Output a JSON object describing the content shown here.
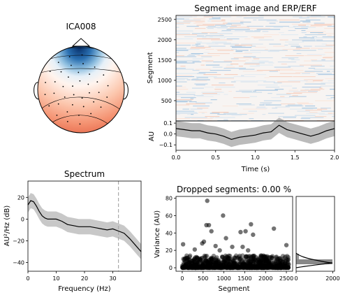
{
  "chart_data": [
    {
      "type": "topomap",
      "title": "ICA008",
      "contours": 5,
      "sensor_dots": 40
    },
    {
      "type": "heatmap",
      "title": "Segment image and ERP/ERF",
      "ylabel": "Segment",
      "xlim": [
        0,
        2.0
      ],
      "ylim": [
        0,
        2600
      ],
      "y_ticks": [
        500,
        1000,
        1500,
        2000,
        2500
      ]
    },
    {
      "type": "line",
      "title": "",
      "xlabel": "Time (s)",
      "ylabel": "AU",
      "xlim": [
        0,
        2.0
      ],
      "ylim": [
        -0.15,
        0.12
      ],
      "x_ticks": [
        "0.0",
        "0.5",
        "1.0",
        "1.5",
        "2.0"
      ],
      "y_ticks": [
        "0.1",
        "0.0",
        "−0.1"
      ],
      "x": [
        0.0,
        0.1,
        0.2,
        0.3,
        0.4,
        0.5,
        0.6,
        0.7,
        0.8,
        0.9,
        1.0,
        1.1,
        1.2,
        1.3,
        1.4,
        1.5,
        1.6,
        1.7,
        1.8,
        1.9,
        2.0
      ],
      "values": [
        0.05,
        0.04,
        0.03,
        0.03,
        0.01,
        0.0,
        -0.02,
        -0.05,
        -0.03,
        -0.02,
        -0.01,
        0.01,
        0.02,
        0.08,
        0.04,
        0.02,
        0.0,
        -0.02,
        0.0,
        0.03,
        0.05
      ],
      "band_halfwidth": 0.07
    },
    {
      "type": "line",
      "title": "Spectrum",
      "xlabel": "Frequency (Hz)",
      "ylabel": "AU²/Hz (dB)",
      "xlim": [
        0,
        40
      ],
      "ylim": [
        -48,
        35
      ],
      "x_ticks": [
        "0",
        "10",
        "20",
        "30"
      ],
      "y_ticks": [
        "20",
        "0",
        "−20",
        "−40"
      ],
      "x": [
        0,
        1,
        2,
        3,
        4,
        5,
        6,
        7,
        8,
        9,
        10,
        12,
        14,
        16,
        18,
        20,
        22,
        24,
        26,
        28,
        30,
        32,
        34,
        36,
        38,
        40
      ],
      "values": [
        13,
        17,
        16,
        12,
        7,
        3,
        1,
        0,
        0,
        0,
        0,
        -2,
        -5,
        -6,
        -7,
        -7,
        -7,
        -8,
        -9,
        -10,
        -9,
        -11,
        -13,
        -18,
        -24,
        -30
      ],
      "band_halfwidth": 7,
      "vline_x": 32
    },
    {
      "type": "scatter",
      "title": "Dropped segments: 0.00 %",
      "xlabel": "Segment",
      "ylabel": "Variance (AU)",
      "xlim": [
        -150,
        2650
      ],
      "ylim": [
        -4,
        82
      ],
      "x_ticks": [
        "0",
        "500",
        "1000",
        "1500",
        "2000",
        "2500"
      ],
      "y_ticks": [
        "0",
        "20",
        "40",
        "60",
        "80"
      ],
      "outliers": [
        [
          20,
          27
        ],
        [
          480,
          28
        ],
        [
          520,
          30
        ],
        [
          600,
          77
        ],
        [
          580,
          49
        ],
        [
          640,
          49
        ],
        [
          700,
          42
        ],
        [
          800,
          25
        ],
        [
          980,
          60
        ],
        [
          1050,
          34
        ],
        [
          1400,
          41
        ],
        [
          1450,
          24
        ],
        [
          1520,
          42
        ],
        [
          1580,
          20
        ],
        [
          1650,
          50
        ],
        [
          1700,
          38
        ],
        [
          2200,
          45
        ],
        [
          2500,
          26
        ],
        [
          300,
          21
        ],
        [
          900,
          20
        ],
        [
          1200,
          24
        ],
        [
          1900,
          14
        ],
        [
          2100,
          12
        ]
      ]
    },
    {
      "type": "histogram",
      "title": "",
      "xlim": [
        0,
        2100
      ],
      "ylim": [
        -4,
        82
      ],
      "x_ticks": [
        "0",
        "2000"
      ]
    }
  ]
}
